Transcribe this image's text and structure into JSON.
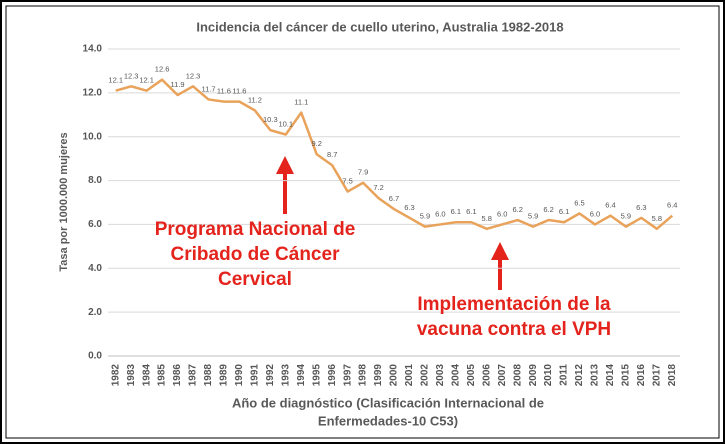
{
  "chart_data": {
    "type": "line",
    "title": "Incidencia del cáncer de cuello uterino, Australia 1982-2018",
    "x_label": [
      "Año de diagnóstico (Clasificación Internacional de",
      "Enfermedades-10 C53)"
    ],
    "y_label": "Tasa por 1000.000 mujeres",
    "categories": [
      "1982",
      "1983",
      "1984",
      "1985",
      "1986",
      "1987",
      "1988",
      "1989",
      "1990",
      "1991",
      "1992",
      "1993",
      "1994",
      "1995",
      "1996",
      "1997",
      "1998",
      "1999",
      "2000",
      "2001",
      "2002",
      "2003",
      "2004",
      "2005",
      "2006",
      "2007",
      "2008",
      "2009",
      "2010",
      "2011",
      "2012",
      "2013",
      "2014",
      "2015",
      "2016",
      "2017",
      "2018"
    ],
    "series": [
      {
        "color": "#e9a25a",
        "values": [
          12.1,
          12.3,
          12.1,
          12.6,
          11.9,
          12.3,
          11.7,
          11.6,
          11.6,
          11.2,
          10.3,
          10.1,
          11.1,
          9.2,
          8.7,
          7.5,
          7.9,
          7.2,
          6.7,
          6.3,
          5.9,
          6.0,
          6.1,
          6.1,
          5.8,
          6.0,
          6.2,
          5.9,
          6.2,
          6.1,
          6.5,
          6.0,
          6.4,
          5.9,
          6.3,
          5.8,
          6.4
        ],
        "value_labels": [
          "12.1",
          "12.3",
          "12.1",
          "12.6",
          "11.9",
          "12.3",
          "11.7",
          "11.6",
          "11.6",
          "11.2",
          "10.3",
          "10.1",
          "11.1",
          "9.2",
          "8.7",
          "7.5",
          "7.9",
          "7.2",
          "6.7",
          "6.3",
          "5.9",
          "6.0",
          "6.1",
          "6.1",
          "5.8",
          "6.0",
          "6.2",
          "5.9",
          "6.2",
          "6.1",
          "6.5",
          "6.0",
          "6.4",
          "5.9",
          "6.3",
          "5.8",
          "6.4"
        ]
      }
    ],
    "ylim": [
      0,
      14
    ],
    "yticks": [
      {
        "value": 0,
        "label": "0.0"
      },
      {
        "value": 2,
        "label": "2.0"
      },
      {
        "value": 4,
        "label": "4.0"
      },
      {
        "value": 6,
        "label": "6.0"
      },
      {
        "value": 8,
        "label": "8.0"
      },
      {
        "value": 10,
        "label": "10.0"
      },
      {
        "value": 12,
        "label": "12.0"
      },
      {
        "value": 14,
        "label": "14.0"
      }
    ],
    "grid": true,
    "annotations": [
      {
        "lines": [
          "Programa Nacional de",
          "Cribado de Cáncer",
          "Cervical"
        ]
      },
      {
        "lines": [
          "Implementación de la",
          "vacuna contra el VPH"
        ]
      }
    ]
  }
}
